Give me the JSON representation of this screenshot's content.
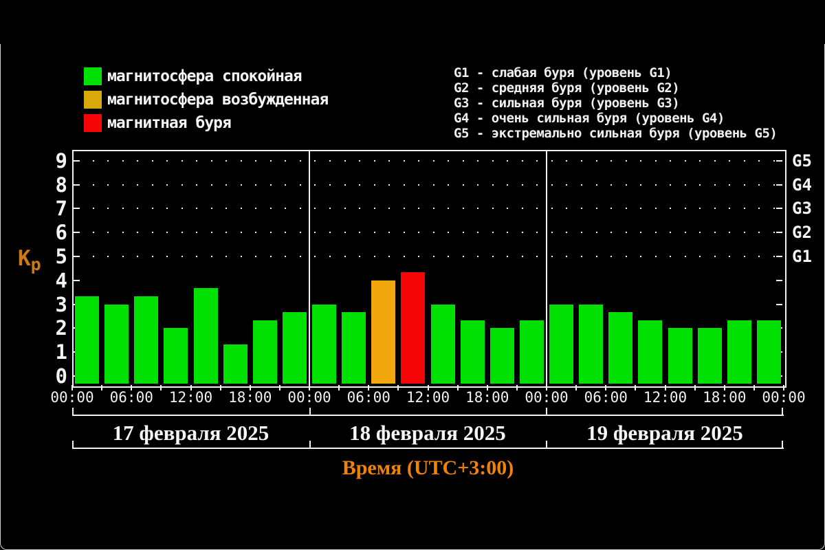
{
  "legend": {
    "items": [
      {
        "name": "quiet",
        "label": "магнитосфера спокойная",
        "color": "#00e103"
      },
      {
        "name": "excited",
        "label": "магнитосфера возбужденная",
        "color": "#d9a80b"
      },
      {
        "name": "storm",
        "label": "магнитная буря",
        "color": "#f50505"
      }
    ]
  },
  "legend_g": {
    "lines": [
      "G1 - слабая буря (уровень G1)",
      "G2 - средняя буря (уровень G2)",
      "G3 - сильная буря (уровень G3)",
      "G4 - очень сильная буря (уровень G4)",
      "G5 - экстремально сильная буря (уровень G5)"
    ]
  },
  "chart_data": {
    "type": "bar",
    "title": "",
    "y_axis_label": "Kp",
    "xlabel": "Время (UTC+3:00)",
    "ylim": [
      0,
      9.5
    ],
    "y_ticks": [
      0,
      1,
      2,
      3,
      4,
      5,
      6,
      7,
      8,
      9
    ],
    "grid_dotted_levels": [
      5,
      6,
      7,
      8,
      9
    ],
    "right_axis": [
      {
        "label": "G5",
        "kp": 9
      },
      {
        "label": "G4",
        "kp": 8
      },
      {
        "label": "G3",
        "kp": 7
      },
      {
        "label": "G2",
        "kp": 6
      },
      {
        "label": "G1",
        "kp": 5
      }
    ],
    "interval_hours": 3,
    "time_labels": [
      "00:00",
      "06:00",
      "12:00",
      "18:00",
      "00:00",
      "06:00",
      "12:00",
      "18:00",
      "00:00",
      "06:00",
      "12:00",
      "18:00",
      "00:00"
    ],
    "days": [
      {
        "date": "17 февраля 2025",
        "values": [
          3.33,
          3.0,
          3.33,
          2.0,
          3.67,
          1.33,
          2.33,
          2.67
        ]
      },
      {
        "date": "18 февраля 2025",
        "values": [
          3.0,
          2.67,
          4.0,
          4.33,
          3.0,
          2.33,
          2.0,
          2.33
        ]
      },
      {
        "date": "19 февраля 2025",
        "values": [
          3.0,
          3.0,
          2.67,
          2.33,
          2.0,
          2.0,
          2.33,
          2.33
        ]
      }
    ],
    "thresholds": {
      "excited_min": 4.0,
      "storm_min": 4.33
    },
    "colors": {
      "quiet_bar": "#00e103",
      "excited_bar": "#f2a70d",
      "storm_bar": "#f50505",
      "axis": "#f2f2f2",
      "kp_label": "#cd7a14",
      "xlabel": "#f0820a",
      "background": "#000000"
    }
  }
}
